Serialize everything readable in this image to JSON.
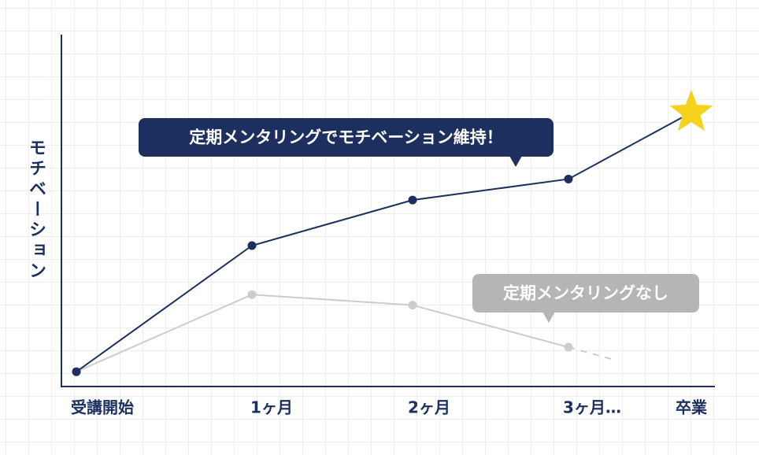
{
  "chart_data": {
    "type": "line",
    "y_label": "モチベーション",
    "categories": [
      "受講開始",
      "1ヶ月",
      "2ヶ月",
      "3ヶ月…",
      "卒業"
    ],
    "ylim": [
      0,
      100
    ],
    "series": [
      {
        "name": "定期メンタリングでモチベーション維持！",
        "color": "#1c2f5e",
        "values": [
          4,
          40,
          53,
          59,
          78
        ]
      },
      {
        "name": "定期メンタリングなし",
        "color": "#cccccc",
        "values": [
          4,
          26,
          23,
          11,
          null
        ]
      }
    ]
  }
}
